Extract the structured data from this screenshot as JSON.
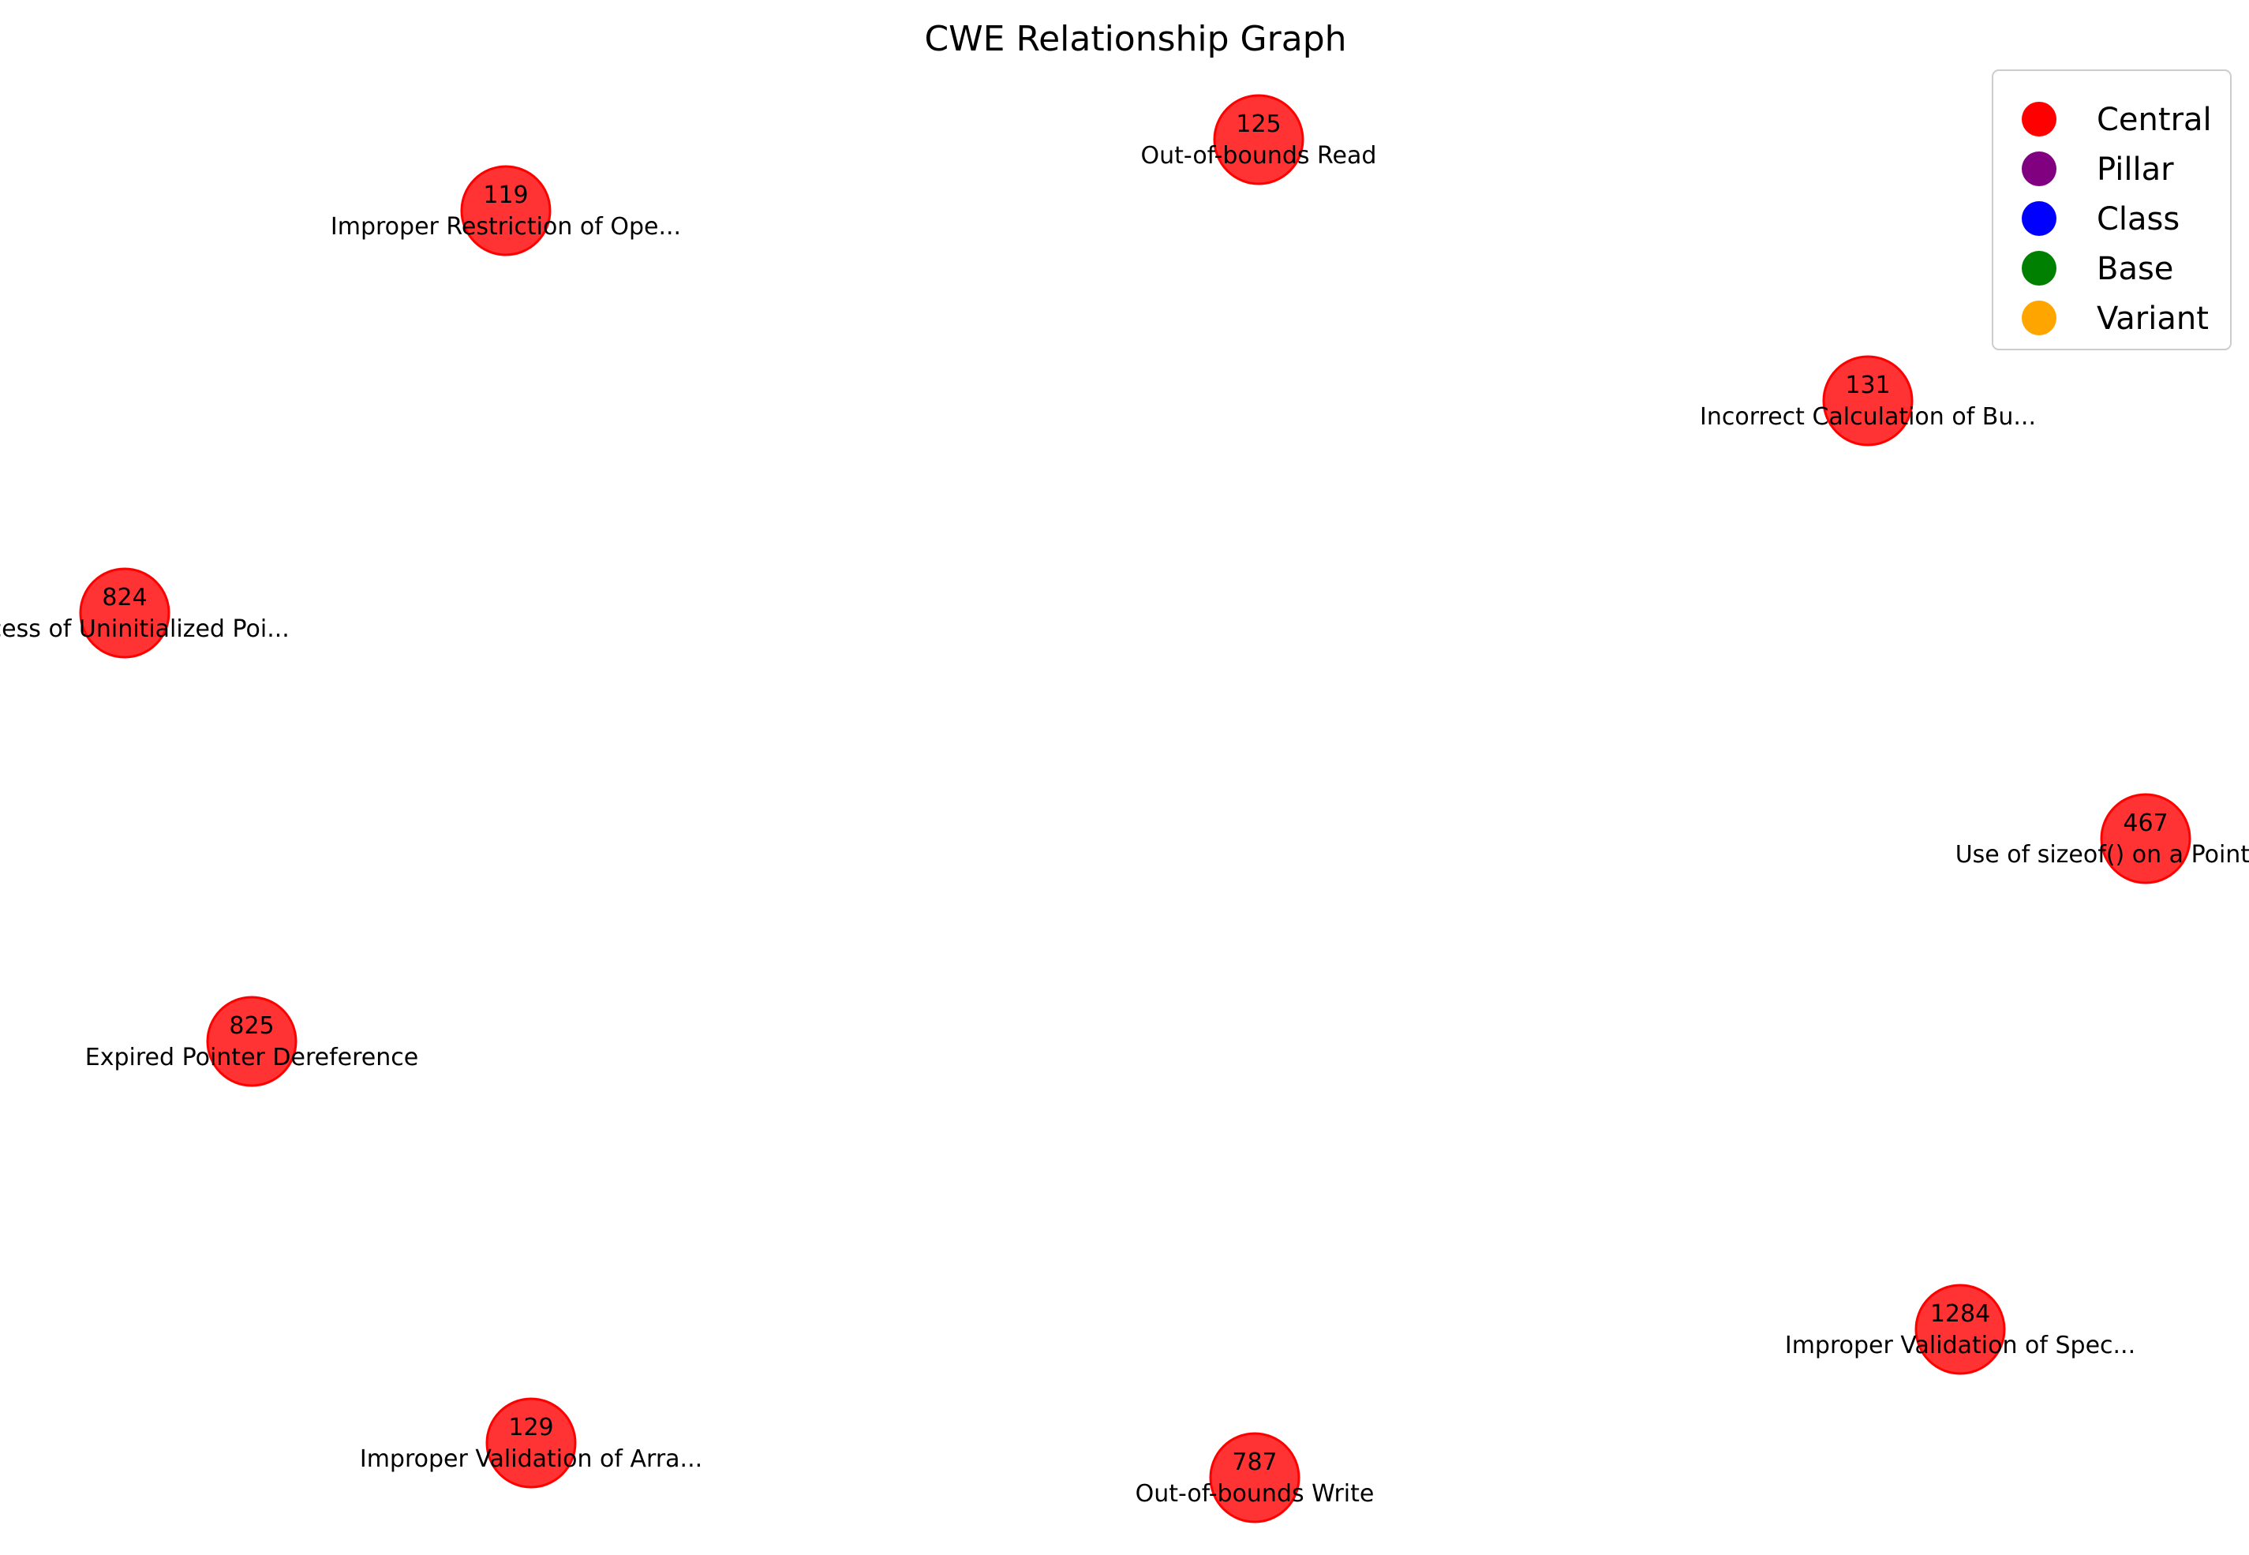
{
  "title": "CWE Relationship Graph",
  "node_color": "#ff0000",
  "nodes": [
    {
      "id": "125",
      "label": "Out-of-bounds Read",
      "type": "Central"
    },
    {
      "id": "119",
      "label": "Improper Restriction of Ope...",
      "type": "Central"
    },
    {
      "id": "131",
      "label": "Incorrect Calculation of Bu...",
      "type": "Central"
    },
    {
      "id": "824",
      "label": "Access of Uninitialized Poi...",
      "type": "Central"
    },
    {
      "id": "467",
      "label": "Use of sizeof() on a Pointer Type",
      "type": "Central"
    },
    {
      "id": "825",
      "label": "Expired Pointer Dereference",
      "type": "Central"
    },
    {
      "id": "1284",
      "label": "Improper Validation of Spec...",
      "type": "Central"
    },
    {
      "id": "129",
      "label": "Improper Validation of Arra...",
      "type": "Central"
    },
    {
      "id": "787",
      "label": "Out-of-bounds Write",
      "type": "Central"
    }
  ],
  "legend": {
    "placement": "top-right",
    "items": [
      {
        "label": "Central",
        "color": "#ff0000"
      },
      {
        "label": "Pillar",
        "color": "#800080"
      },
      {
        "label": "Class",
        "color": "#0000ff"
      },
      {
        "label": "Base",
        "color": "#008000"
      },
      {
        "label": "Variant",
        "color": "#ffa500"
      }
    ]
  }
}
